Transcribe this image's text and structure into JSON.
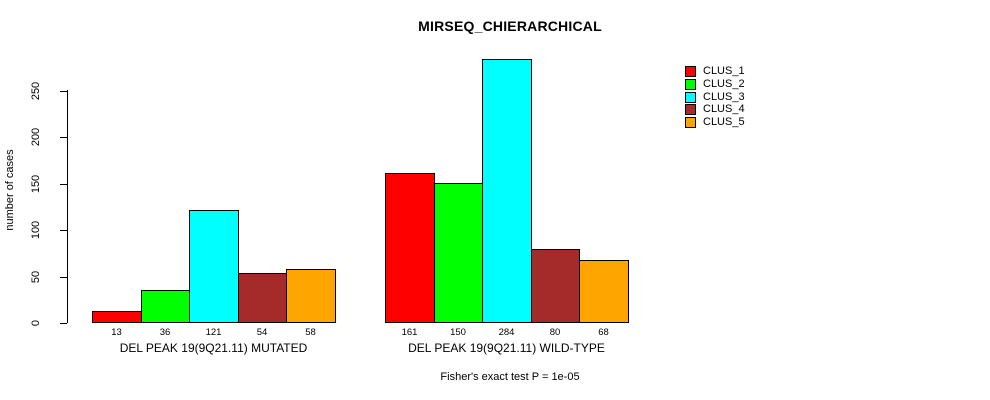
{
  "chart_data": {
    "type": "bar",
    "title": "MIRSEQ_CHIERARCHICAL",
    "xlabel": "",
    "ylabel": "number of cases",
    "ylim": [
      0,
      250
    ],
    "yticks": [
      0,
      50,
      100,
      150,
      200,
      250
    ],
    "grid": false,
    "legend_position": "top-right",
    "bar_value_labels_shown": true,
    "categories": [
      "DEL PEAK 19(9Q21.11) MUTATED",
      "DEL PEAK 19(9Q21.11) WILD-TYPE"
    ],
    "series": [
      {
        "name": "CLUS_1",
        "color": "#ff0000",
        "values": [
          13,
          161
        ]
      },
      {
        "name": "CLUS_2",
        "color": "#00ff00",
        "values": [
          36,
          150
        ]
      },
      {
        "name": "CLUS_3",
        "color": "#00ffff",
        "values": [
          121,
          284
        ]
      },
      {
        "name": "CLUS_4",
        "color": "#a52a2a",
        "values": [
          54,
          80
        ]
      },
      {
        "name": "CLUS_5",
        "color": "#ffa500",
        "values": [
          58,
          68
        ]
      }
    ],
    "caption": "Fisher's exact test P = 1e-05"
  }
}
